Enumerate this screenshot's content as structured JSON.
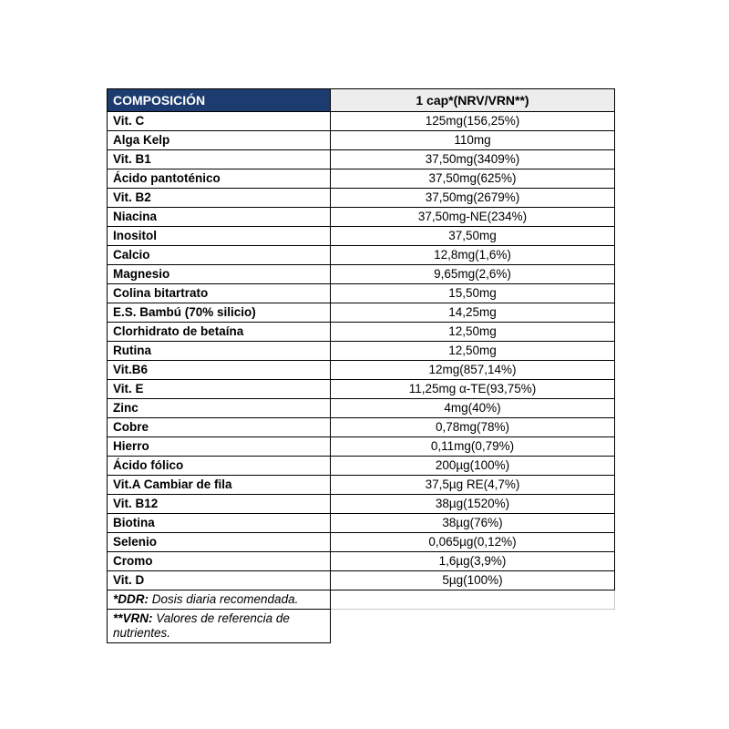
{
  "table": {
    "header": {
      "left": "COMPOSICIÓN",
      "right": "1 cap*(NRV/VRN**)"
    },
    "rows": [
      {
        "name": "Vit. C",
        "value": "125mg(156,25%)"
      },
      {
        "name": "Alga Kelp",
        "value": "110mg"
      },
      {
        "name": "Vit. B1",
        "value": "37,50mg(3409%)"
      },
      {
        "name": "Ácido pantoténico",
        "value": "37,50mg(625%)"
      },
      {
        "name": "Vit. B2",
        "value": "37,50mg(2679%)"
      },
      {
        "name": "Niacina",
        "value": "37,50mg-NE(234%)"
      },
      {
        "name": "Inositol",
        "value": "37,50mg"
      },
      {
        "name": "Calcio",
        "value": "12,8mg(1,6%)"
      },
      {
        "name": "Magnesio",
        "value": "9,65mg(2,6%)"
      },
      {
        "name": "Colina bitartrato",
        "value": "15,50mg"
      },
      {
        "name": "E.S. Bambú (70% silicio)",
        "value": "14,25mg"
      },
      {
        "name": "Clorhidrato de betaína",
        "value": "12,50mg"
      },
      {
        "name": "Rutina",
        "value": "12,50mg"
      },
      {
        "name": "Vit.B6",
        "value": "12mg(857,14%)"
      },
      {
        "name": "Vit. E",
        "value": "11,25mg α-TE(93,75%)"
      },
      {
        "name": "Zinc",
        "value": "4mg(40%)"
      },
      {
        "name": "Cobre",
        "value": "0,78mg(78%)"
      },
      {
        "name": "Hierro",
        "value": "0,11mg(0,79%)"
      },
      {
        "name": "Ácido fólico",
        "value": "200µg(100%)"
      },
      {
        "name": "Vit.A Cambiar de fila",
        "value": "37,5µg RE(4,7%)"
      },
      {
        "name": "Vit. B12",
        "value": "38µg(1520%)"
      },
      {
        "name": "Biotina",
        "value": "38µg(76%)"
      },
      {
        "name": "Selenio",
        "value": "0,065µg(0,12%)"
      },
      {
        "name": "Cromo",
        "value": "1,6µg(3,9%)"
      },
      {
        "name": "Vit. D",
        "value": "5µg(100%)"
      }
    ],
    "footnotes": [
      {
        "label": "*DDR:",
        "text": " Dosis diaria recomendada."
      },
      {
        "label": "**VRN:",
        "text": " Valores de referencia de nutrientes."
      }
    ],
    "colors": {
      "header_bg": "#1C3B6E",
      "header_text": "#FFFFFF",
      "subheader_bg": "#EDEDED",
      "border": "#000000",
      "light_border": "#C8C8C8"
    }
  }
}
